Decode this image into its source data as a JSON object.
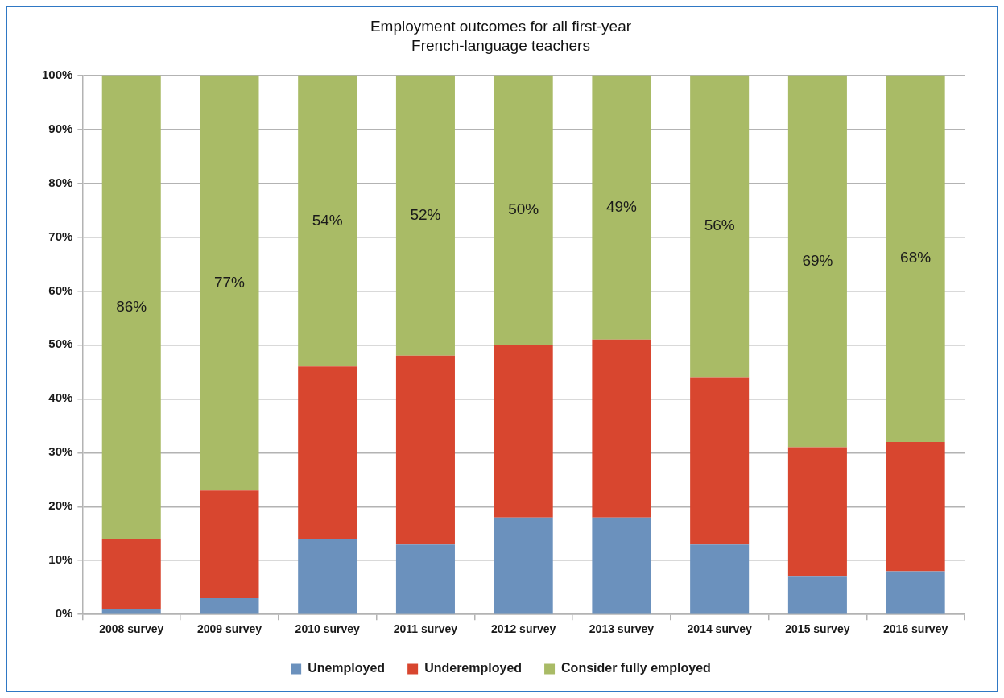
{
  "chart_data": {
    "type": "bar",
    "title": "Employment outcomes for all first-year\nFrench-language teachers",
    "categories": [
      "2008 survey",
      "2009 survey",
      "2010 survey",
      "2011 survey",
      "2012 survey",
      "2013 survey",
      "2014 survey",
      "2015 survey",
      "2016 survey"
    ],
    "series": [
      {
        "name": "Unemployed",
        "color": "#6b91bd",
        "values": [
          1,
          3,
          14,
          13,
          18,
          18,
          13,
          7,
          8
        ]
      },
      {
        "name": "Underemployed",
        "color": "#d8462f",
        "values": [
          13,
          20,
          32,
          35,
          32,
          33,
          31,
          24,
          24
        ]
      },
      {
        "name": "Consider fully employed",
        "color": "#a9bb66",
        "values": [
          86,
          77,
          54,
          52,
          50,
          49,
          56,
          69,
          68
        ],
        "value_labels": [
          "86%",
          "77%",
          "54%",
          "52%",
          "50%",
          "49%",
          "56%",
          "69%",
          "68%"
        ]
      }
    ],
    "stacked": true,
    "ylim": [
      0,
      100
    ],
    "yticks": [
      {
        "value": 0,
        "label": "0%"
      },
      {
        "value": 10,
        "label": "10%"
      },
      {
        "value": 20,
        "label": "20%"
      },
      {
        "value": 30,
        "label": "30%"
      },
      {
        "value": 40,
        "label": "40%"
      },
      {
        "value": 50,
        "label": "50%"
      },
      {
        "value": 60,
        "label": "60%"
      },
      {
        "value": 70,
        "label": "70%"
      },
      {
        "value": 80,
        "label": "80%"
      },
      {
        "value": 90,
        "label": "90%"
      },
      {
        "value": 100,
        "label": "100%"
      }
    ],
    "grid": "y",
    "legend": "bottom"
  }
}
